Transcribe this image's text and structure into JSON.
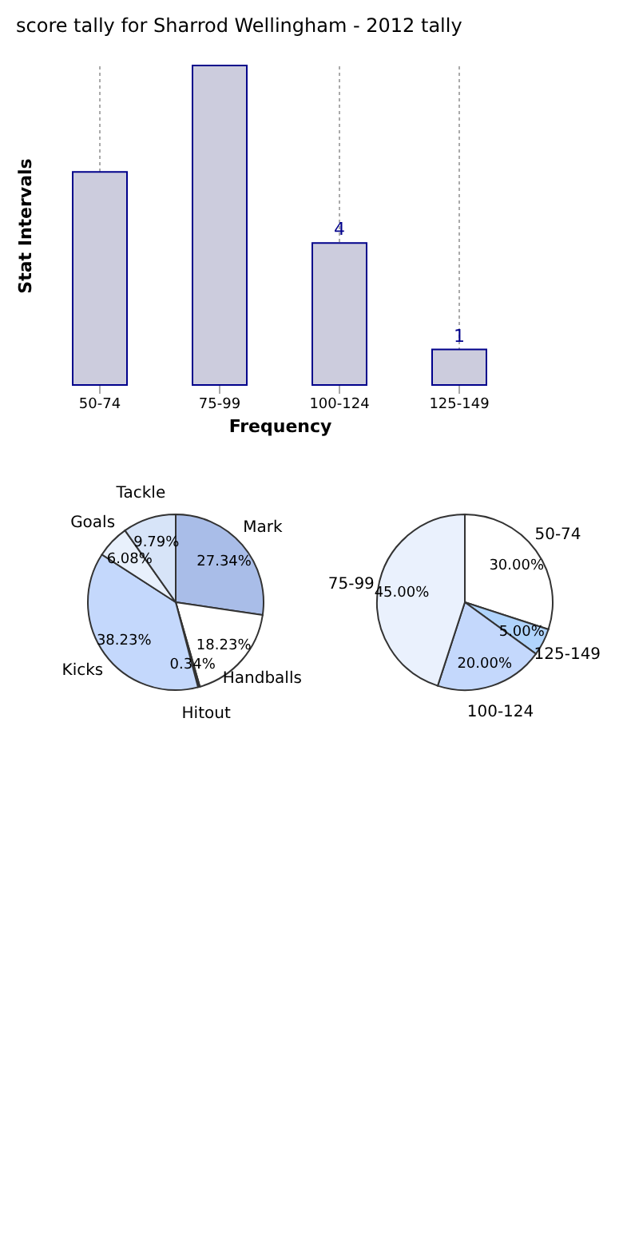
{
  "chart_data": [
    {
      "type": "bar",
      "title": "score tally for Sharrod Wellingham - 2012 tally",
      "xlabel": "Frequency",
      "ylabel": "Stat Intervals",
      "categories": [
        "50-74",
        "75-99",
        "100-124",
        "125-149"
      ],
      "values": [
        6,
        9,
        4,
        1
      ],
      "value_labels": [
        null,
        null,
        "4",
        "1"
      ],
      "color": "#ccccdd",
      "grid": "x",
      "tick_labels": "x"
    },
    {
      "type": "pie",
      "categories": [
        "Mark",
        "Handballs",
        "Hitout",
        "Kicks",
        "Goals",
        "Tackle"
      ],
      "values": [
        27.34,
        18.23,
        0.34,
        38.23,
        6.08,
        9.79
      ],
      "value_labels": [
        "27.34%",
        "18.23%",
        "0.34%",
        "38.23%",
        "6.08%",
        "9.79%"
      ],
      "colors": [
        "#a9bde8",
        "#ffffff",
        "#333355",
        "#c4d8fc",
        "#e8f0fc",
        "#d7e4f8"
      ]
    },
    {
      "type": "pie",
      "categories": [
        "50-74",
        "125-149",
        "100-124",
        "75-99"
      ],
      "values": [
        30.0,
        5.0,
        20.0,
        45.0
      ],
      "value_labels": [
        "30.00%",
        "5.00%",
        "20.00%",
        "45.00%"
      ],
      "colors": [
        "#ffffff",
        "#b0d4fc",
        "#c4d8fc",
        "#eaf1fd"
      ]
    }
  ]
}
